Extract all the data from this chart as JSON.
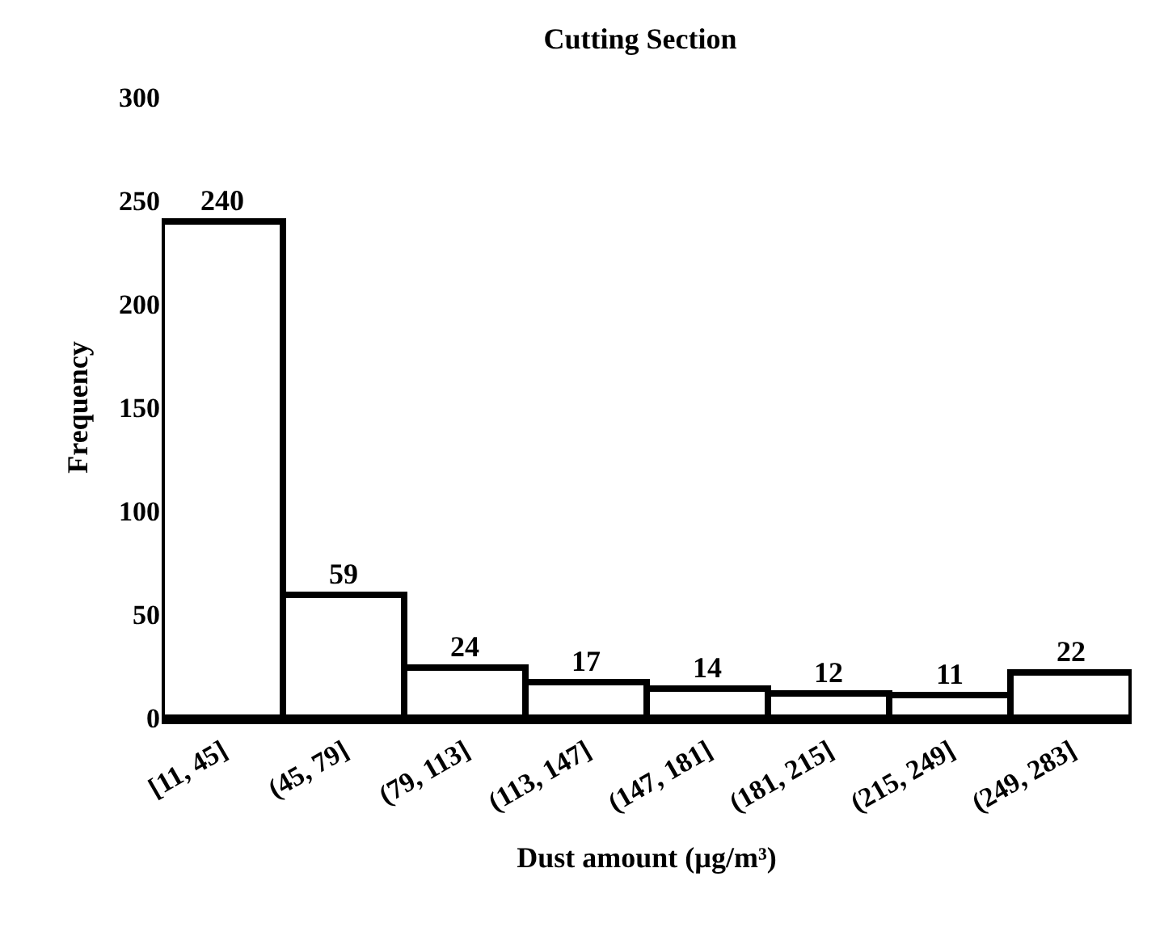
{
  "chart_data": {
    "type": "bar",
    "title": "Cutting Section",
    "xlabel": "Dust amount (µg/m³)",
    "ylabel": "Frequency",
    "categories": [
      "[11, 45]",
      "(45, 79]",
      "(79, 113]",
      "(113, 147]",
      "(147, 181]",
      "(181, 215]",
      "(215, 249]",
      "(249, 283]"
    ],
    "values": [
      240,
      59,
      24,
      17,
      14,
      12,
      11,
      22
    ],
    "color": "#ffffff",
    "ylim": [
      0,
      300
    ],
    "yticks": [
      0,
      50,
      100,
      150,
      200,
      250,
      300
    ],
    "data_labels": true,
    "grid": false
  }
}
